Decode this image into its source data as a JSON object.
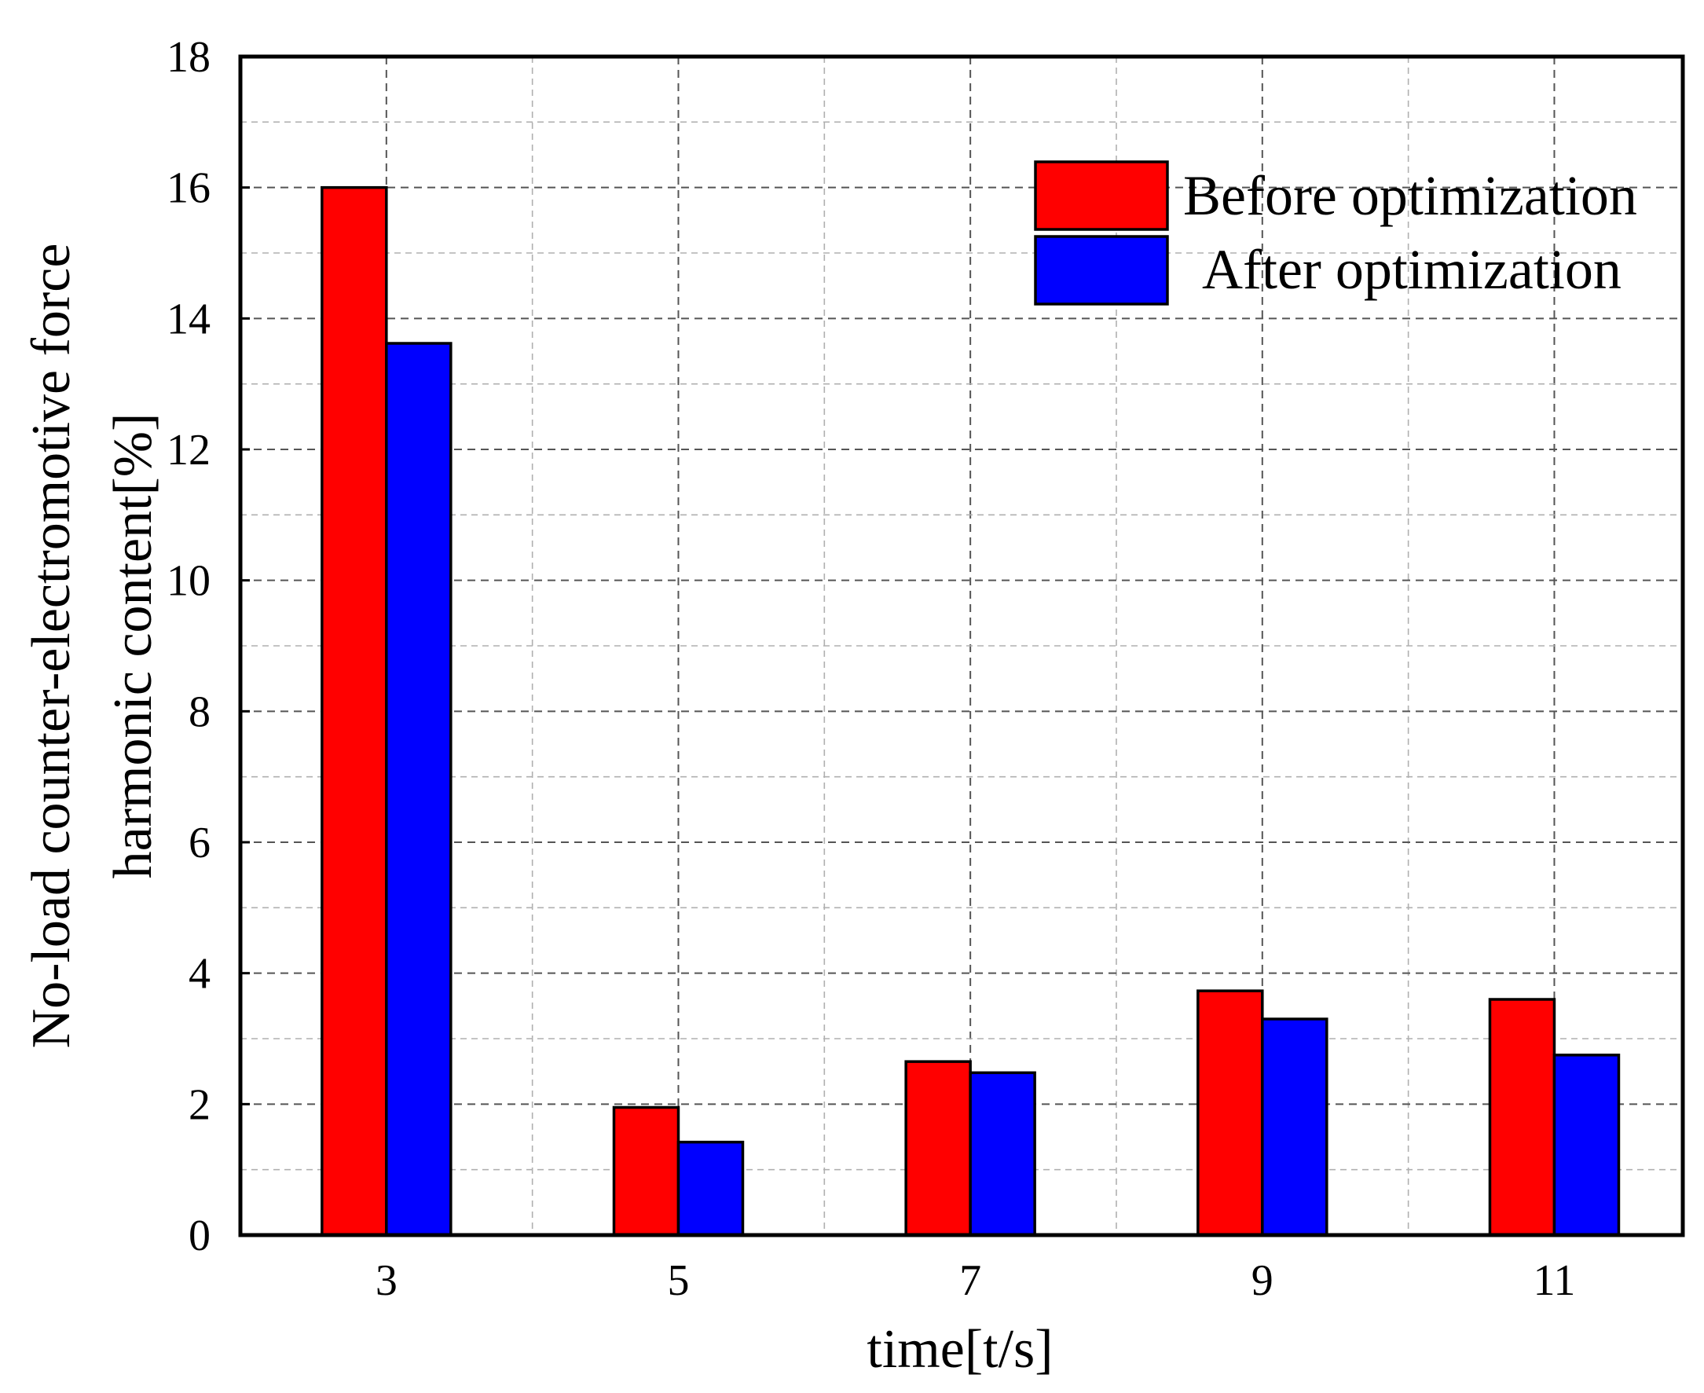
{
  "chart_data": {
    "type": "bar",
    "title": "",
    "categories": [
      "3",
      "5",
      "7",
      "9",
      "11"
    ],
    "series": [
      {
        "name": "Before optimization",
        "color": "#ff0000",
        "values": [
          16.0,
          1.95,
          2.65,
          3.73,
          3.6
        ]
      },
      {
        "name": "After optimization",
        "color": "#0000ff",
        "values": [
          13.62,
          1.42,
          2.48,
          3.3,
          2.75
        ]
      }
    ],
    "xlabel": "time[t/s]",
    "ylabel_lines": [
      "No-load counter-electromotive force",
      "harmonic content[%]"
    ],
    "ylim": [
      0,
      18
    ],
    "yticks": [
      0,
      2,
      4,
      6,
      8,
      10,
      12,
      14,
      16,
      18
    ],
    "ytick_labels": [
      "0",
      "2",
      "4",
      "6",
      "8",
      "10",
      "12",
      "14",
      "16",
      "18"
    ],
    "x_gridlines": [
      3,
      4,
      5,
      6,
      7,
      8,
      9,
      10,
      11
    ],
    "grid": true,
    "legend_position": "top-right"
  }
}
